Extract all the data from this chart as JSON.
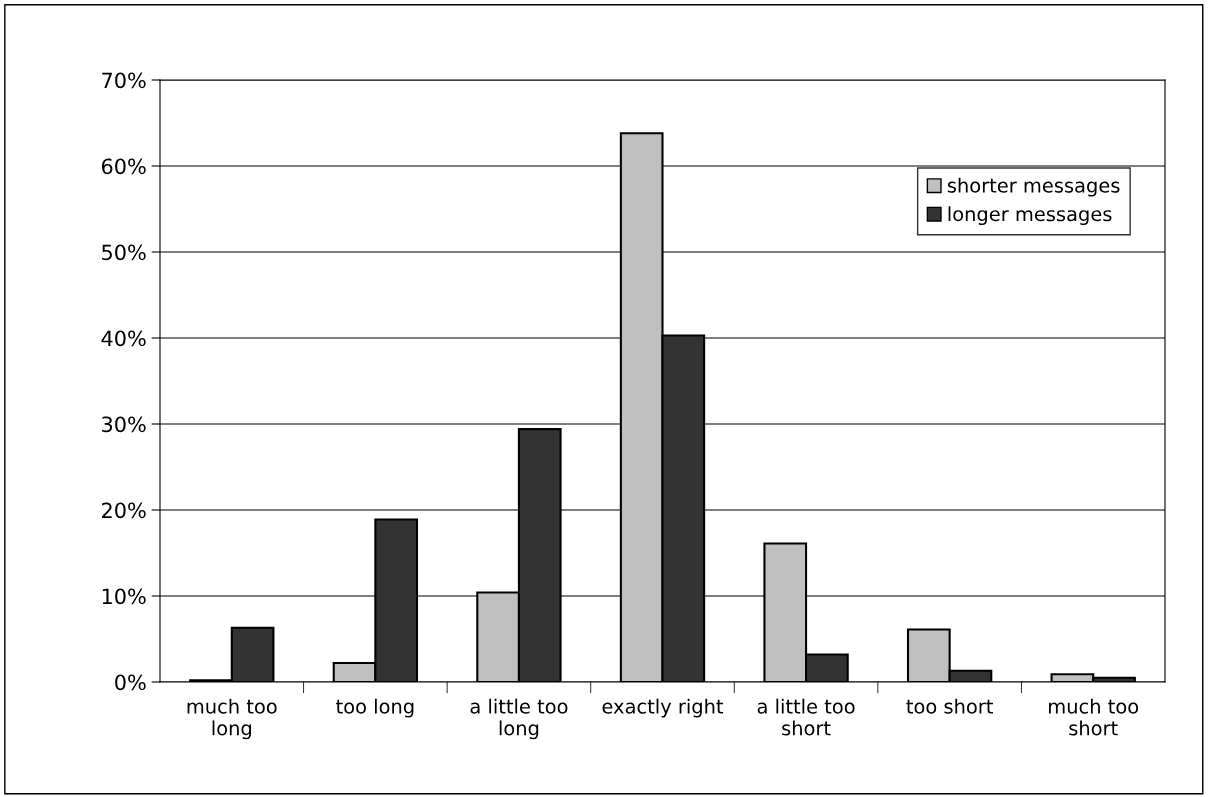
{
  "chart_data": {
    "type": "bar",
    "categories": [
      "much too\nlong",
      "too long",
      "a little too\nlong",
      "exactly right",
      "a little too\nshort",
      "too short",
      "much too\nshort"
    ],
    "series": [
      {
        "name": "shorter messages",
        "color": "#c0c0c0",
        "values": [
          0.2,
          2.2,
          10.4,
          63.8,
          16.1,
          6.1,
          0.9
        ]
      },
      {
        "name": "longer messages",
        "color": "#333333",
        "values": [
          6.3,
          18.9,
          29.4,
          40.3,
          3.2,
          1.3,
          0.5
        ]
      }
    ],
    "ylim": [
      0,
      70
    ],
    "yticks": [
      {
        "value": 0,
        "label": "0%"
      },
      {
        "value": 10,
        "label": "10%"
      },
      {
        "value": 20,
        "label": "20%"
      },
      {
        "value": 30,
        "label": "30%"
      },
      {
        "value": 40,
        "label": "40%"
      },
      {
        "value": 50,
        "label": "50%"
      },
      {
        "value": 60,
        "label": "60%"
      },
      {
        "value": 70,
        "label": "70%"
      }
    ],
    "grid": "y",
    "legend": "top right"
  }
}
